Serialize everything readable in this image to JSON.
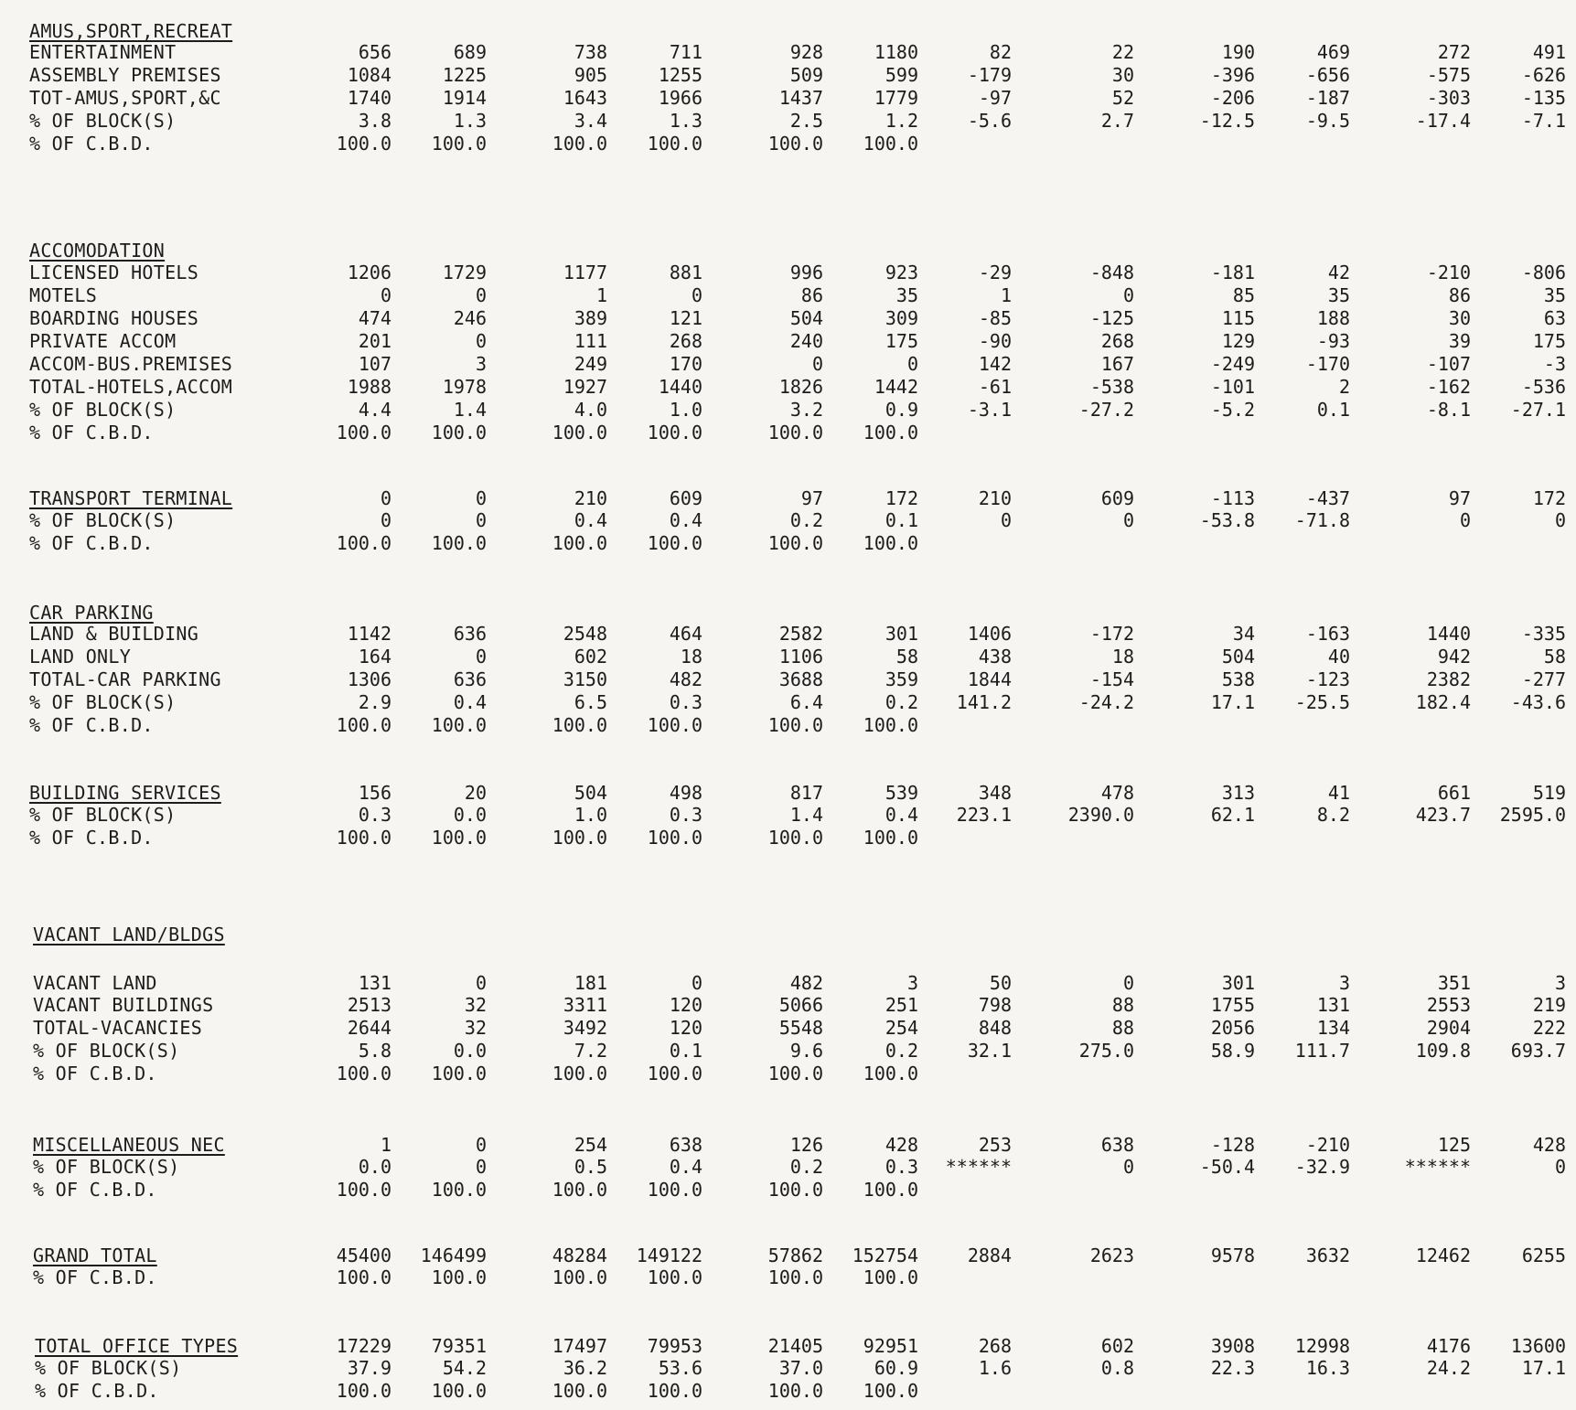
{
  "sections": [
    {
      "title": "AMUS,SPORT,RECREAT",
      "rows": [
        {
          "label": "ENTERTAINMENT",
          "values": [
            "656",
            "689",
            "738",
            "711",
            "928",
            "1180",
            "82",
            "22",
            "190",
            "469",
            "272",
            "491"
          ]
        },
        {
          "label": "ASSEMBLY PREMISES",
          "values": [
            "1084",
            "1225",
            "905",
            "1255",
            "509",
            "599",
            "-179",
            "30",
            "-396",
            "-656",
            "-575",
            "-626"
          ]
        },
        {
          "label": "TOT-AMUS,SPORT,&C",
          "values": [
            "1740",
            "1914",
            "1643",
            "1966",
            "1437",
            "1779",
            "-97",
            "52",
            "-206",
            "-187",
            "-303",
            "-135"
          ]
        },
        {
          "label": "% OF BLOCK(S)",
          "values": [
            "3.8",
            "1.3",
            "3.4",
            "1.3",
            "2.5",
            "1.2",
            "-5.6",
            "2.7",
            "-12.5",
            "-9.5",
            "-17.4",
            "-7.1"
          ]
        },
        {
          "label": "% OF C.B.D.",
          "values": [
            "100.0",
            "100.0",
            "100.0",
            "100.0",
            "100.0",
            "100.0",
            "",
            "",
            "",
            "",
            "",
            ""
          ]
        }
      ]
    },
    {
      "title": "ACCOMODATION",
      "rows": [
        {
          "label": "LICENSED HOTELS",
          "values": [
            "1206",
            "1729",
            "1177",
            "881",
            "996",
            "923",
            "-29",
            "-848",
            "-181",
            "42",
            "-210",
            "-806"
          ]
        },
        {
          "label": "MOTELS",
          "values": [
            "0",
            "0",
            "1",
            "0",
            "86",
            "35",
            "1",
            "0",
            "85",
            "35",
            "86",
            "35"
          ]
        },
        {
          "label": "BOARDING HOUSES",
          "values": [
            "474",
            "246",
            "389",
            "121",
            "504",
            "309",
            "-85",
            "-125",
            "115",
            "188",
            "30",
            "63"
          ]
        },
        {
          "label": "PRIVATE ACCOM",
          "values": [
            "201",
            "0",
            "111",
            "268",
            "240",
            "175",
            "-90",
            "268",
            "129",
            "-93",
            "39",
            "175"
          ]
        },
        {
          "label": "ACCOM-BUS.PREMISES",
          "values": [
            "107",
            "3",
            "249",
            "170",
            "0",
            "0",
            "142",
            "167",
            "-249",
            "-170",
            "-107",
            "-3"
          ]
        },
        {
          "label": "TOTAL-HOTELS,ACCOM",
          "values": [
            "1988",
            "1978",
            "1927",
            "1440",
            "1826",
            "1442",
            "-61",
            "-538",
            "-101",
            "2",
            "-162",
            "-536"
          ]
        },
        {
          "label": "% OF BLOCK(S)",
          "values": [
            "4.4",
            "1.4",
            "4.0",
            "1.0",
            "3.2",
            "0.9",
            "-3.1",
            "-27.2",
            "-5.2",
            "0.1",
            "-8.1",
            "-27.1"
          ]
        },
        {
          "label": "% OF C.B.D.",
          "values": [
            "100.0",
            "100.0",
            "100.0",
            "100.0",
            "100.0",
            "100.0",
            "",
            "",
            "",
            "",
            "",
            ""
          ]
        }
      ]
    },
    {
      "title": "TRANSPORT TERMINAL",
      "rows": [
        {
          "label": "% OF BLOCK(S)",
          "values": [
            "0",
            "0",
            "0.4",
            "0.4",
            "0.2",
            "0.1",
            "0",
            "0",
            "-53.8",
            "-71.8",
            "0",
            "0"
          ]
        },
        {
          "label": "% OF C.B.D.",
          "values": [
            "100.0",
            "100.0",
            "100.0",
            "100.0",
            "100.0",
            "100.0",
            "",
            "",
            "",
            "",
            "",
            ""
          ]
        }
      ],
      "title_values": [
        "0",
        "0",
        "210",
        "609",
        "97",
        "172",
        "210",
        "609",
        "-113",
        "-437",
        "97",
        "172"
      ]
    },
    {
      "title": "CAR PARKING",
      "rows": [
        {
          "label": "LAND & BUILDING",
          "values": [
            "1142",
            "636",
            "2548",
            "464",
            "2582",
            "301",
            "1406",
            "-172",
            "34",
            "-163",
            "1440",
            "-335"
          ]
        },
        {
          "label": "LAND ONLY",
          "values": [
            "164",
            "0",
            "602",
            "18",
            "1106",
            "58",
            "438",
            "18",
            "504",
            "40",
            "942",
            "58"
          ]
        },
        {
          "label": "TOTAL-CAR PARKING",
          "values": [
            "1306",
            "636",
            "3150",
            "482",
            "3688",
            "359",
            "1844",
            "-154",
            "538",
            "-123",
            "2382",
            "-277"
          ]
        },
        {
          "label": "% OF BLOCK(S)",
          "values": [
            "2.9",
            "0.4",
            "6.5",
            "0.3",
            "6.4",
            "0.2",
            "141.2",
            "-24.2",
            "17.1",
            "-25.5",
            "182.4",
            "-43.6"
          ]
        },
        {
          "label": "% OF C.B.D.",
          "values": [
            "100.0",
            "100.0",
            "100.0",
            "100.0",
            "100.0",
            "100.0",
            "",
            "",
            "",
            "",
            "",
            ""
          ]
        }
      ]
    },
    {
      "title": "BUILDING SERVICES",
      "title_values": [
        "156",
        "20",
        "504",
        "498",
        "817",
        "539",
        "348",
        "478",
        "313",
        "41",
        "661",
        "519"
      ],
      "rows": [
        {
          "label": "% OF BLOCK(S)",
          "values": [
            "0.3",
            "0.0",
            "1.0",
            "0.3",
            "1.4",
            "0.4",
            "223.1",
            "2390.0",
            "62.1",
            "8.2",
            "423.7",
            "2595.0"
          ]
        },
        {
          "label": "% OF C.B.D.",
          "values": [
            "100.0",
            "100.0",
            "100.0",
            "100.0",
            "100.0",
            "100.0",
            "",
            "",
            "",
            "",
            "",
            ""
          ]
        }
      ]
    },
    {
      "title": "VACANT LAND/BLDGS",
      "rows": [
        {
          "label": "VACANT LAND",
          "values": [
            "131",
            "0",
            "181",
            "0",
            "482",
            "3",
            "50",
            "0",
            "301",
            "3",
            "351",
            "3"
          ]
        },
        {
          "label": "VACANT BUILDINGS",
          "values": [
            "2513",
            "32",
            "3311",
            "120",
            "5066",
            "251",
            "798",
            "88",
            "1755",
            "131",
            "2553",
            "219"
          ]
        },
        {
          "label": "TOTAL-VACANCIES",
          "values": [
            "2644",
            "32",
            "3492",
            "120",
            "5548",
            "254",
            "848",
            "88",
            "2056",
            "134",
            "2904",
            "222"
          ]
        },
        {
          "label": "% OF BLOCK(S)",
          "values": [
            "5.8",
            "0.0",
            "7.2",
            "0.1",
            "9.6",
            "0.2",
            "32.1",
            "275.0",
            "58.9",
            "111.7",
            "109.8",
            "693.7"
          ]
        },
        {
          "label": "% OF C.B.D.",
          "values": [
            "100.0",
            "100.0",
            "100.0",
            "100.0",
            "100.0",
            "100.0",
            "",
            "",
            "",
            "",
            "",
            ""
          ]
        }
      ]
    },
    {
      "title": "MISCELLANEOUS NEC",
      "title_values": [
        "1",
        "0",
        "254",
        "638",
        "126",
        "428",
        "253",
        "638",
        "-128",
        "-210",
        "125",
        "428"
      ],
      "rows": [
        {
          "label": "% OF BLOCK(S)",
          "values": [
            "0.0",
            "0",
            "0.5",
            "0.4",
            "0.2",
            "0.3",
            "******",
            "0",
            "-50.4",
            "-32.9",
            "******",
            "0"
          ]
        },
        {
          "label": "% OF C.B.D.",
          "values": [
            "100.0",
            "100.0",
            "100.0",
            "100.0",
            "100.0",
            "100.0",
            "",
            "",
            "",
            "",
            "",
            ""
          ]
        }
      ]
    },
    {
      "title": "GRAND TOTAL",
      "title_values": [
        "45400",
        "146499",
        "48284",
        "149122",
        "57862",
        "152754",
        "2884",
        "2623",
        "9578",
        "3632",
        "12462",
        "6255"
      ],
      "rows": [
        {
          "label": "% OF C.B.D.",
          "values": [
            "100.0",
            "100.0",
            "100.0",
            "100.0",
            "100.0",
            "100.0",
            "",
            "",
            "",
            "",
            "",
            ""
          ]
        }
      ]
    },
    {
      "title": "TOTAL OFFICE TYPES",
      "title_values": [
        "17229",
        "79351",
        "17497",
        "79953",
        "21405",
        "92951",
        "268",
        "602",
        "3908",
        "12998",
        "4176",
        "13600"
      ],
      "rows": [
        {
          "label": "% OF BLOCK(S)",
          "values": [
            "37.9",
            "54.2",
            "36.2",
            "53.6",
            "37.0",
            "60.9",
            "1.6",
            "0.8",
            "22.3",
            "16.3",
            "24.2",
            "17.1"
          ]
        },
        {
          "label": "% OF C.B.D.",
          "values": [
            "100.0",
            "100.0",
            "100.0",
            "100.0",
            "100.0",
            "100.0",
            "",
            "",
            "",
            "",
            "",
            ""
          ]
        }
      ]
    }
  ]
}
